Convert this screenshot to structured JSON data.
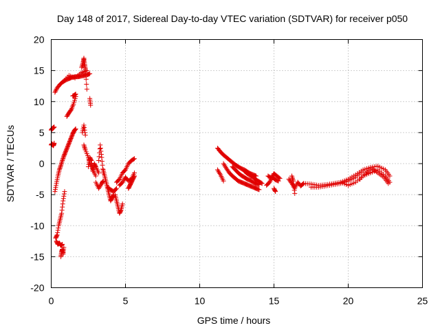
{
  "chart_data": {
    "type": "scatter",
    "title": "Day 148 of 2017, Sidereal Day-to-day VTEC variation (SDTVAR) for receiver p050",
    "xlabel": "GPS time / hours",
    "ylabel": "SDTVAR / TECUs",
    "xlim": [
      0,
      25
    ],
    "ylim": [
      -20,
      20
    ],
    "x_ticks": [
      0,
      5,
      10,
      15,
      20,
      25
    ],
    "y_ticks": [
      20,
      15,
      10,
      5,
      0,
      -5,
      -10,
      -15,
      -20
    ],
    "grid": true,
    "marker": "+",
    "colors": {
      "series": "#e00000",
      "grid": "#a0a0a0",
      "axis": "#000000"
    },
    "series": [
      {
        "name": "SDTVAR",
        "segments": [
          {
            "x": [
              0.0,
              0.05,
              0.1,
              0.15,
              0.2
            ],
            "y": [
              5.4,
              5.6,
              5.7,
              5.8,
              5.9
            ]
          },
          {
            "x": [
              0.0,
              0.05,
              0.1,
              0.15,
              0.2
            ],
            "y": [
              3.0,
              3.2,
              3.0,
              2.9,
              3.3
            ]
          },
          {
            "x": [
              0.25,
              0.4,
              0.6,
              0.8,
              1.0,
              1.2,
              1.4,
              1.6,
              1.8,
              2.0,
              2.2,
              2.4,
              2.6
            ],
            "y": [
              11.5,
              12.2,
              12.8,
              13.2,
              13.5,
              13.7,
              13.9,
              14.0,
              14.0,
              14.1,
              14.2,
              14.3,
              14.5
            ]
          },
          {
            "x": [
              0.8,
              1.2,
              1.6,
              2.0,
              2.4
            ],
            "y": [
              13.2,
              14.2,
              13.8,
              14.6,
              15.0
            ]
          },
          {
            "x": [
              1.05,
              1.2,
              1.35,
              1.5,
              1.65
            ],
            "y": [
              7.6,
              8.2,
              8.7,
              9.6,
              10.8
            ]
          },
          {
            "x": [
              1.45,
              1.55,
              1.65
            ],
            "y": [
              10.9,
              11.0,
              11.2
            ]
          },
          {
            "x": [
              2.05,
              2.15,
              2.2,
              2.25,
              2.3,
              2.4
            ],
            "y": [
              15.5,
              16.3,
              17.0,
              16.0,
              15.2,
              12.0
            ]
          },
          {
            "x": [
              2.6,
              2.65
            ],
            "y": [
              10.5,
              9.4
            ]
          },
          {
            "x": [
              2.1,
              2.2,
              2.3
            ],
            "y": [
              5.0,
              6.2,
              4.6
            ]
          },
          {
            "x": [
              0.25,
              0.35,
              0.45,
              0.55,
              0.65,
              0.75,
              0.85,
              0.95,
              1.05,
              1.15,
              1.25,
              1.35,
              1.45,
              1.55,
              1.65
            ],
            "y": [
              -4.5,
              -3.2,
              -2.0,
              -1.0,
              -0.3,
              0.5,
              1.2,
              1.8,
              2.4,
              3.0,
              3.6,
              4.2,
              4.8,
              5.3,
              5.6
            ]
          },
          {
            "x": [
              0.3,
              0.4,
              0.5,
              0.6,
              0.7,
              0.8,
              0.9
            ],
            "y": [
              -12.0,
              -11.5,
              -10.0,
              -9.0,
              -8.0,
              -6.0,
              -4.5
            ]
          },
          {
            "x": [
              0.35,
              0.45,
              0.55,
              0.65,
              0.75
            ],
            "y": [
              -12.5,
              -13.0,
              -12.8,
              -13.2,
              -13.0
            ]
          },
          {
            "x": [
              0.65,
              0.7,
              0.75,
              0.8,
              0.85
            ],
            "y": [
              -15.0,
              -14.2,
              -13.8,
              -14.6,
              -13.5
            ]
          },
          {
            "x": [
              2.2,
              2.3,
              2.5,
              2.6,
              2.8,
              3.0
            ],
            "y": [
              3.0,
              2.2,
              1.0,
              0.0,
              -1.0,
              -2.0
            ]
          },
          {
            "x": [
              2.5,
              2.6,
              2.7,
              2.8,
              2.9,
              3.0,
              3.2
            ],
            "y": [
              -0.5,
              1.0,
              0.5,
              -1.2,
              0.0,
              -0.5,
              -1.5
            ]
          },
          {
            "x": [
              3.0,
              3.2,
              3.4,
              3.5
            ],
            "y": [
              -3.0,
              -4.0,
              -3.2,
              -2.8
            ]
          },
          {
            "x": [
              3.2,
              3.3,
              3.4,
              3.5
            ],
            "y": [
              0.5,
              3.0,
              1.0,
              -1.5
            ]
          },
          {
            "x": [
              3.5,
              3.6,
              3.7,
              3.8,
              3.9,
              4.0,
              4.1,
              4.2
            ],
            "y": [
              -1.0,
              -2.0,
              -3.0,
              -4.0,
              -5.0,
              -6.0,
              -5.5,
              -5.0
            ]
          },
          {
            "x": [
              3.8,
              4.0,
              4.2,
              4.4
            ],
            "y": [
              -3.8,
              -4.2,
              -4.5,
              -4.0
            ]
          },
          {
            "x": [
              4.3,
              4.4,
              4.5,
              4.6,
              4.7,
              4.8
            ],
            "y": [
              -5.0,
              -6.0,
              -7.0,
              -8.0,
              -7.5,
              -6.5
            ]
          },
          {
            "x": [
              4.4,
              4.6,
              4.8,
              5.0,
              5.2,
              5.4,
              5.6
            ],
            "y": [
              -3.0,
              -2.5,
              -1.5,
              -1.0,
              0.0,
              0.5,
              0.8
            ]
          },
          {
            "x": [
              4.6,
              4.8,
              5.0,
              5.2,
              5.4,
              5.6
            ],
            "y": [
              -3.5,
              -3.0,
              -2.2,
              -2.8,
              -2.5,
              -1.5
            ]
          },
          {
            "x": [
              5.2,
              5.3,
              5.4,
              5.5,
              5.6
            ],
            "y": [
              -4.0,
              -3.5,
              -3.0,
              -2.5,
              -2.0
            ]
          },
          {
            "x": [
              11.2,
              11.4,
              11.6,
              11.8,
              12.0,
              12.2,
              12.4,
              12.6,
              12.8,
              13.0,
              13.2,
              13.4,
              13.6,
              13.8
            ],
            "y": [
              2.5,
              1.9,
              1.4,
              1.0,
              0.6,
              0.2,
              -0.2,
              -0.5,
              -0.8,
              -1.0,
              -1.3,
              -1.6,
              -1.8,
              -2.0
            ]
          },
          {
            "x": [
              11.2,
              11.4,
              11.6
            ],
            "y": [
              -1.0,
              -1.8,
              -2.8
            ]
          },
          {
            "x": [
              11.6,
              11.8,
              12.0,
              12.2,
              12.4,
              12.6,
              12.8,
              13.0,
              13.2,
              13.4,
              13.6,
              13.8,
              14.0
            ],
            "y": [
              0.0,
              -0.8,
              -1.5,
              -2.0,
              -2.4,
              -2.8,
              -3.0,
              -3.2,
              -3.4,
              -3.6,
              -3.8,
              -4.0,
              -4.2
            ]
          },
          {
            "x": [
              12.2,
              12.4,
              12.6,
              12.8,
              13.0,
              13.2,
              13.4,
              13.6,
              13.8,
              14.0
            ],
            "y": [
              -0.5,
              -1.0,
              -1.5,
              -1.9,
              -2.2,
              -2.5,
              -2.7,
              -3.0,
              -3.2,
              -3.4
            ]
          },
          {
            "x": [
              13.0,
              13.2,
              13.4,
              13.6,
              13.8,
              14.0,
              14.2
            ],
            "y": [
              -1.2,
              -1.6,
              -1.9,
              -2.2,
              -2.6,
              -2.9,
              -3.2
            ]
          },
          {
            "x": [
              14.5,
              14.7,
              14.9,
              15.1,
              15.3
            ],
            "y": [
              -3.5,
              -3.0,
              -2.2,
              -2.6,
              -2.8
            ]
          },
          {
            "x": [
              14.6,
              14.8,
              15.0,
              15.2,
              15.4
            ],
            "y": [
              -2.0,
              -2.3,
              -1.6,
              -2.0,
              -2.4
            ]
          },
          {
            "x": [
              15.0,
              15.1
            ],
            "y": [
              -4.0,
              -4.5
            ]
          },
          {
            "x": [
              16.0,
              16.2,
              16.4,
              16.6,
              16.8,
              17.0
            ],
            "y": [
              -2.5,
              -3.2,
              -4.0,
              -3.0,
              -3.6,
              -3.2
            ]
          },
          {
            "x": [
              16.2,
              16.3,
              16.4
            ],
            "y": [
              -2.0,
              -2.8,
              -4.8
            ]
          },
          {
            "x": [
              17.0,
              17.5,
              18.0,
              18.5,
              19.0,
              19.5,
              20.0,
              20.5,
              21.0,
              21.5,
              22.0,
              22.5,
              22.8
            ],
            "y": [
              -3.2,
              -3.3,
              -3.5,
              -3.4,
              -3.2,
              -3.0,
              -2.5,
              -1.8,
              -1.0,
              -0.6,
              -0.4,
              -1.0,
              -2.0
            ]
          },
          {
            "x": [
              17.5,
              18.0,
              18.5,
              19.0,
              19.5,
              20.0,
              20.5,
              21.0
            ],
            "y": [
              -3.8,
              -3.8,
              -3.6,
              -3.4,
              -3.2,
              -2.8,
              -2.2,
              -1.2
            ]
          },
          {
            "x": [
              19.5,
              20.0,
              20.5,
              21.0,
              21.5,
              22.0,
              22.5,
              22.8
            ],
            "y": [
              -3.0,
              -3.5,
              -3.0,
              -2.0,
              -1.5,
              -1.0,
              -2.0,
              -3.0
            ]
          },
          {
            "x": [
              20.8,
              21.2,
              21.6,
              22.0,
              22.4,
              22.7
            ],
            "y": [
              -2.5,
              -1.5,
              -0.8,
              -1.5,
              -2.2,
              -3.2
            ]
          }
        ]
      }
    ]
  }
}
